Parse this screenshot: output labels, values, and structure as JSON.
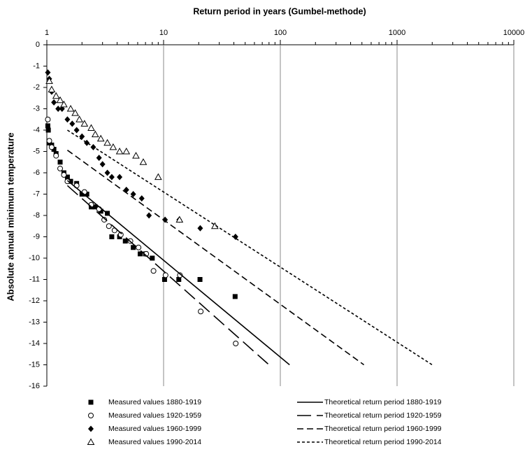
{
  "chart_data": {
    "type": "scatter",
    "title": "Return period in years (Gumbel-methode)",
    "y_label": "Absolute annual minimum temperature",
    "x_scale": "log",
    "x_axis_position": "top",
    "grid": "x",
    "xlim": [
      1,
      10000
    ],
    "xticks": [
      1,
      10,
      100,
      1000,
      10000
    ],
    "ylim": [
      -16,
      0
    ],
    "yticks": [
      0,
      -1,
      -2,
      -3,
      -4,
      -5,
      -6,
      -7,
      -8,
      -9,
      -10,
      -11,
      -12,
      -13,
      -14,
      -15,
      -16
    ],
    "series": [
      {
        "name": "Measured values 1880-1919",
        "color": "#000000",
        "marker": "square",
        "x": [
          1.02,
          1.03,
          1.05,
          1.1,
          1.15,
          1.2,
          1.3,
          1.4,
          1.5,
          1.6,
          1.8,
          2.0,
          2.2,
          2.4,
          2.6,
          2.9,
          3.3,
          3.6,
          4.2,
          4.7,
          5.5,
          6.3,
          7,
          8,
          10.2,
          13.5,
          20.5,
          41
        ],
        "values": [
          -3.8,
          -4.0,
          -4.6,
          -4.7,
          -4.9,
          -5.1,
          -5.5,
          -6.0,
          -6.2,
          -6.4,
          -6.5,
          -7.0,
          -7.0,
          -7.6,
          -7.6,
          -7.8,
          -7.9,
          -9.0,
          -9.0,
          -9.2,
          -9.5,
          -9.8,
          -9.8,
          -10.0,
          -11.0,
          -11.0,
          -11.0,
          -11.8
        ]
      },
      {
        "name": "Measured values 1920-1959",
        "color": "#000000",
        "marker": "circle",
        "x": [
          1.02,
          1.05,
          1.1,
          1.2,
          1.3,
          1.4,
          1.5,
          1.8,
          2.1,
          2.4,
          2.8,
          3.1,
          3.4,
          3.8,
          4.3,
          5.2,
          6.1,
          7.1,
          8.2,
          10.4,
          13.8,
          20.8,
          41.5
        ],
        "values": [
          -3.5,
          -4.5,
          -4.8,
          -5.2,
          -5.8,
          -6.1,
          -6.4,
          -6.6,
          -6.9,
          -7.5,
          -7.7,
          -8.2,
          -8.5,
          -8.7,
          -8.9,
          -9.2,
          -9.5,
          -9.8,
          -10.6,
          -10.8,
          -10.8,
          -12.5,
          -14.0
        ]
      },
      {
        "name": "Measured values 1960-1999",
        "color": "#000000",
        "marker": "diamond",
        "x": [
          1.02,
          1.05,
          1.1,
          1.15,
          1.25,
          1.35,
          1.5,
          1.65,
          1.8,
          2.0,
          2.2,
          2.5,
          2.8,
          3.0,
          3.3,
          3.6,
          4.2,
          4.8,
          5.5,
          6.5,
          7.5,
          10.3,
          13.6,
          20.6,
          41.3
        ],
        "values": [
          -1.3,
          -1.6,
          -2.2,
          -2.7,
          -3.0,
          -3.0,
          -3.5,
          -3.7,
          -4.0,
          -4.3,
          -4.6,
          -4.8,
          -5.3,
          -5.6,
          -6.0,
          -6.2,
          -6.2,
          -6.8,
          -7.0,
          -7.2,
          -8.0,
          -8.2,
          -8.2,
          -8.6,
          -9.0
        ]
      },
      {
        "name": "Measured values 1990-2014",
        "color": "#000000",
        "marker": "triangle",
        "x": [
          1.05,
          1.1,
          1.2,
          1.3,
          1.4,
          1.6,
          1.75,
          1.9,
          2.1,
          2.4,
          2.6,
          2.9,
          3.3,
          3.7,
          4.2,
          4.8,
          5.8,
          6.7,
          9.0,
          13.7,
          27.5
        ],
        "values": [
          -1.7,
          -2.1,
          -2.4,
          -2.6,
          -2.8,
          -3.0,
          -3.2,
          -3.5,
          -3.7,
          -3.9,
          -4.2,
          -4.4,
          -4.6,
          -4.8,
          -5.0,
          -5.0,
          -5.2,
          -5.5,
          -6.2,
          -8.2,
          -8.5
        ]
      },
      {
        "name": "Theoretical return period 1880-1919",
        "color": "#000000",
        "line": "solid",
        "x": [
          1.5,
          120
        ],
        "values": [
          -6.36,
          -15
        ]
      },
      {
        "name": "Theoretical return period 1920-1959",
        "color": "#000000",
        "line": "long-dash",
        "x": [
          1.5,
          80
        ],
        "values": [
          -6.6,
          -15
        ]
      },
      {
        "name": "Theoretical return period 1960-1999",
        "color": "#000000",
        "line": "dash",
        "x": [
          1.5,
          520
        ],
        "values": [
          -4.94,
          -15
        ]
      },
      {
        "name": "Theoretical return period 1990-2014",
        "color": "#000000",
        "line": "short-dash",
        "x": [
          1.5,
          2000
        ],
        "values": [
          -4.0,
          -15
        ]
      }
    ]
  }
}
